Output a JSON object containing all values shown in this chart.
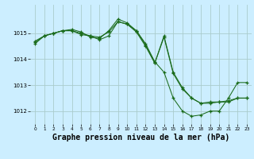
{
  "background_color": "#cceeff",
  "grid_color": "#aacccc",
  "line_color": "#1a6b1a",
  "marker_color": "#1a6b1a",
  "xlabel": "Graphe pression niveau de la mer (hPa)",
  "xlabel_fontsize": 7,
  "ylim": [
    1011.5,
    1016.1
  ],
  "xlim": [
    -0.5,
    23.5
  ],
  "yticks": [
    1012,
    1013,
    1014,
    1015
  ],
  "xticks": [
    0,
    1,
    2,
    3,
    4,
    5,
    6,
    7,
    8,
    9,
    10,
    11,
    12,
    13,
    14,
    15,
    16,
    17,
    18,
    19,
    20,
    21,
    22,
    23
  ],
  "series1_x": [
    0,
    1,
    2,
    3,
    4,
    5,
    6,
    7,
    8,
    9,
    10,
    11,
    12,
    13,
    14,
    15,
    16,
    17,
    18,
    19,
    20,
    21,
    22,
    23
  ],
  "series1_y": [
    1014.7,
    1014.9,
    1015.0,
    1015.1,
    1015.1,
    1015.0,
    1014.9,
    1014.85,
    1015.05,
    1015.45,
    1015.35,
    1015.1,
    1014.55,
    1013.85,
    1014.9,
    1013.5,
    1012.9,
    1012.5,
    1012.3,
    1012.35,
    1012.35,
    1012.4,
    1012.5,
    1012.5
  ],
  "series2_x": [
    0,
    1,
    2,
    3,
    4,
    5,
    6,
    7,
    8,
    9,
    10,
    11,
    12,
    13,
    14,
    15,
    16,
    17,
    18,
    19,
    20,
    21,
    22,
    23
  ],
  "series2_y": [
    1014.65,
    1014.9,
    1015.0,
    1015.1,
    1015.15,
    1015.05,
    1014.85,
    1014.8,
    1015.1,
    1015.55,
    1015.4,
    1015.1,
    1014.6,
    1013.9,
    1013.5,
    1012.5,
    1012.0,
    1011.8,
    1011.85,
    1012.0,
    1012.0,
    1012.5,
    1013.1,
    1013.1
  ],
  "series3_x": [
    0,
    1,
    2,
    3,
    4,
    5,
    6,
    7,
    8,
    9,
    10,
    11,
    12,
    13,
    14,
    15,
    16,
    17,
    18,
    19,
    20,
    21,
    22,
    23
  ],
  "series3_y": [
    1014.6,
    1014.9,
    1015.0,
    1015.1,
    1015.1,
    1014.95,
    1014.9,
    1014.75,
    1014.9,
    1015.45,
    1015.35,
    1015.05,
    1014.5,
    1013.85,
    1014.85,
    1013.45,
    1012.85,
    1012.5,
    1012.3,
    1012.3,
    1012.35,
    1012.35,
    1012.5,
    1012.5
  ]
}
